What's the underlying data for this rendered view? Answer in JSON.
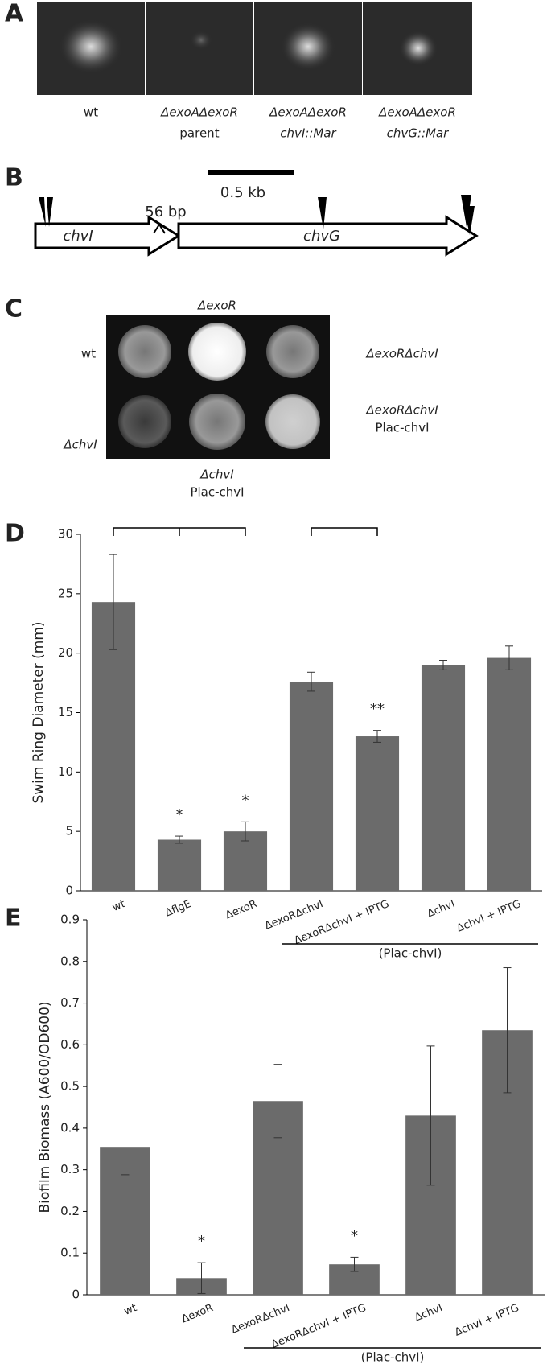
{
  "panels": [
    "A",
    "B",
    "C",
    "D",
    "E"
  ],
  "panel_a": {
    "captions": [
      [
        "wt"
      ],
      [
        "ΔexoAΔexoR",
        "parent"
      ],
      [
        "ΔexoAΔexoR",
        "chvI::Mar"
      ],
      [
        "ΔexoAΔexoR",
        "chvG::Mar"
      ]
    ]
  },
  "panel_b": {
    "scale_bar": "0.5 kb",
    "gap": "56 bp",
    "genes": [
      "chvI",
      "chvG"
    ]
  },
  "panel_c": {
    "top": "ΔexoR",
    "left_top": "wt",
    "right_top": "ΔexoRΔchvI",
    "left_bottom": "ΔchvI",
    "right_bottom": [
      "ΔexoRΔchvI",
      "Plac-chvI"
    ],
    "bottom": [
      "ΔchvI",
      "Plac-chvI"
    ]
  },
  "chart_data": [
    {
      "type": "bar",
      "ylabel": "Swim Ring Diameter (mm)",
      "categories": [
        "wt",
        "ΔflgE",
        "ΔexoR",
        "ΔexoRΔchvI",
        "ΔexoRΔchvI + IPTG",
        "ΔchvI",
        "ΔchvI + IPTG"
      ],
      "values": [
        24.3,
        4.3,
        5.0,
        17.6,
        13.0,
        19.0,
        19.6
      ],
      "errors": [
        4.0,
        0.3,
        0.8,
        0.8,
        0.5,
        0.4,
        1.0
      ],
      "color": "#6b6b6b",
      "ylim": [
        0,
        30
      ],
      "yticks": [
        0,
        5,
        10,
        15,
        20,
        25,
        30
      ],
      "annotations": [
        {
          "text": "*",
          "x": "ΔflgE"
        },
        {
          "text": "*",
          "x": "ΔexoR"
        },
        {
          "text": "**",
          "x": "ΔexoRΔchvI + IPTG"
        }
      ],
      "group_label": "(Plac-chvI)"
    },
    {
      "type": "bar",
      "ylabel": "Biofilm Biomass (A600/OD600)",
      "categories": [
        "wt",
        "ΔexoR",
        "ΔexoRΔchvI",
        "ΔexoRΔchvI + IPTG",
        "ΔchvI",
        "ΔchvI + IPTG"
      ],
      "values": [
        0.355,
        0.04,
        0.465,
        0.073,
        0.43,
        0.635
      ],
      "errors": [
        0.067,
        0.037,
        0.088,
        0.017,
        0.167,
        0.15
      ],
      "color": "#6b6b6b",
      "ylim": [
        0,
        0.9
      ],
      "yticks": [
        0,
        0.1,
        0.2,
        0.3,
        0.4,
        0.5,
        0.6,
        0.7,
        0.8,
        0.9
      ],
      "annotations": [
        {
          "text": "*",
          "x": "ΔexoR"
        },
        {
          "text": "*",
          "x": "ΔexoRΔchvI + IPTG"
        }
      ],
      "group_label": "(Plac-chvI)"
    }
  ]
}
